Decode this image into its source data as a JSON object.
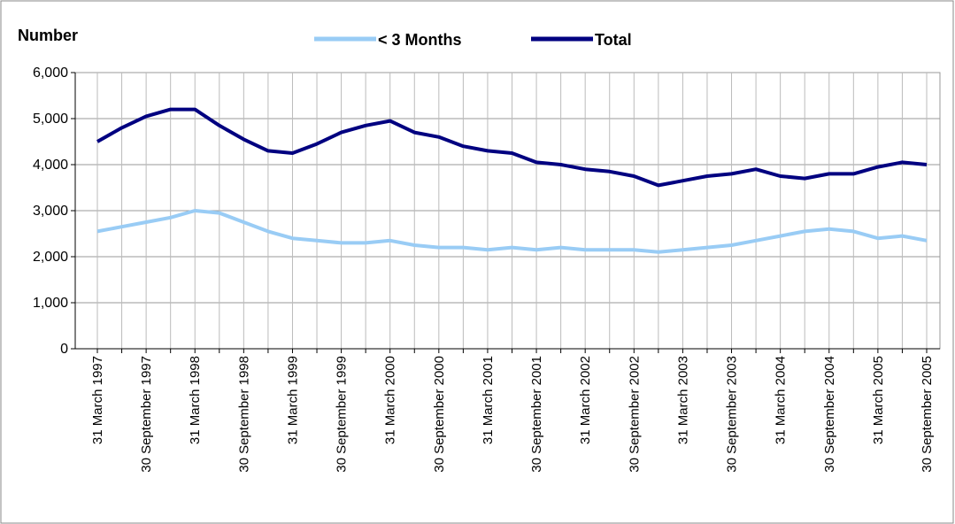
{
  "chart_data": {
    "type": "line",
    "y_label": "Number",
    "categories": [
      "31 March 1997",
      null,
      "30 September 1997",
      null,
      "31 March 1998",
      null,
      "30 September 1998",
      null,
      "31 March 1999",
      null,
      "30 September 1999",
      null,
      "31 March 2000",
      null,
      "30 September 2000",
      null,
      "31 March 2001",
      null,
      "30 September 2001",
      null,
      "31 March 2002",
      null,
      "30 September 2002",
      null,
      "31 March 2003",
      null,
      "30 September 2003",
      null,
      "31 March 2004",
      null,
      "30 September 2004",
      null,
      "31 March 2005",
      null,
      "30 September 2005"
    ],
    "series": [
      {
        "name": "< 3 Months",
        "color": "#99ccf5",
        "values": [
          2550,
          2650,
          2750,
          2850,
          3000,
          2950,
          2750,
          2550,
          2400,
          2350,
          2300,
          2300,
          2350,
          2250,
          2200,
          2200,
          2150,
          2200,
          2150,
          2200,
          2150,
          2150,
          2150,
          2100,
          2150,
          2200,
          2250,
          2350,
          2450,
          2550,
          2600,
          2550,
          2400,
          2450,
          2350
        ]
      },
      {
        "name": "Total",
        "color": "#000080",
        "values": [
          4500,
          4800,
          5050,
          5200,
          5200,
          4850,
          4550,
          4300,
          4250,
          4450,
          4700,
          4850,
          4950,
          4700,
          4600,
          4400,
          4300,
          4250,
          4050,
          4000,
          3900,
          3850,
          3750,
          3550,
          3650,
          3750,
          3800,
          3900,
          3750,
          3700,
          3800,
          3800,
          3950,
          4050,
          4000
        ]
      }
    ],
    "ylim": [
      0,
      6000
    ],
    "yticks": [
      0,
      {
        "value": 1000,
        "label": "1,000"
      },
      {
        "value": 2000,
        "label": "2,000"
      },
      {
        "value": 3000,
        "label": "3,000"
      },
      {
        "value": 4000,
        "label": "4,000"
      },
      {
        "value": 5000,
        "label": "5,000"
      },
      {
        "value": 6000,
        "label": "6,000"
      }
    ],
    "grid": true,
    "legend": "top"
  }
}
